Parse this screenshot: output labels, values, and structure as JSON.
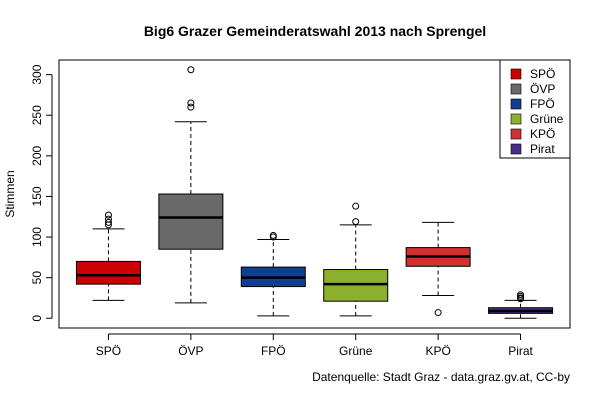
{
  "chart_data": {
    "type": "boxplot",
    "title": "Big6 Grazer Gemeinderatswahl 2013 nach Sprengel",
    "xlabel": "",
    "ylabel": "Stimmen",
    "ylim": [
      -12,
      318
    ],
    "yticks": [
      0,
      50,
      100,
      150,
      200,
      250,
      300
    ],
    "grid": false,
    "legend_position": "top-right",
    "source_note": "Datenquelle: Stadt Graz - data.graz.gv.at, CC-by",
    "categories": [
      "SPÖ",
      "ÖVP",
      "FPÖ",
      "Grüne",
      "KPÖ",
      "Pirat"
    ],
    "series": [
      {
        "name": "SPÖ",
        "color": "#cc0000",
        "whisker_low": 22,
        "q1": 42,
        "median": 53,
        "q3": 70,
        "whisker_high": 110,
        "outliers": [
          115,
          118,
          122,
          127
        ]
      },
      {
        "name": "ÖVP",
        "color": "#696969",
        "whisker_low": 19,
        "q1": 85,
        "median": 124,
        "q3": 153,
        "whisker_high": 242,
        "outliers": [
          260,
          265,
          306
        ]
      },
      {
        "name": "FPÖ",
        "color": "#0f3f8f",
        "whisker_low": 3,
        "q1": 39,
        "median": 50,
        "q3": 63,
        "whisker_high": 97,
        "outliers": [
          100,
          102
        ]
      },
      {
        "name": "Grüne",
        "color": "#8ab02e",
        "whisker_low": 3,
        "q1": 21,
        "median": 42,
        "q3": 60,
        "whisker_high": 115,
        "outliers": [
          119,
          138
        ]
      },
      {
        "name": "KPÖ",
        "color": "#d03030",
        "whisker_low": 28,
        "q1": 64,
        "median": 76,
        "q3": 87,
        "whisker_high": 118,
        "outliers": [
          7
        ]
      },
      {
        "name": "Pirat",
        "color": "#4b2d8a",
        "whisker_low": 0,
        "q1": 6,
        "median": 9,
        "q3": 13,
        "whisker_high": 22,
        "outliers": [
          24,
          25,
          27,
          29
        ]
      }
    ]
  }
}
